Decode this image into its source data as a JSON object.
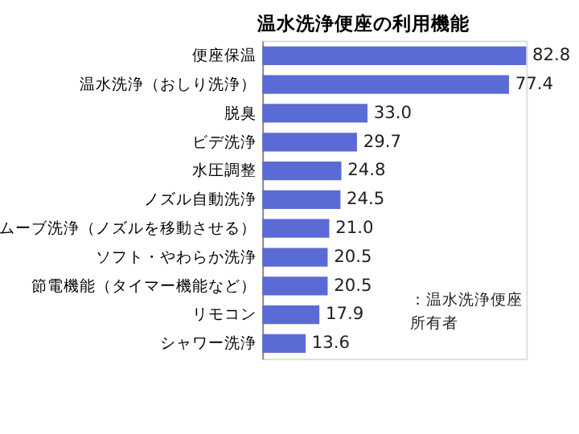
{
  "chart_data": {
    "type": "bar",
    "orientation": "horizontal",
    "title": "温水洗浄便座の利用機能",
    "categories": [
      "便座保温",
      "温水洗浄（おしり洗浄）",
      "脱臭",
      "ビデ洗浄",
      "水圧調整",
      "ノズル自動洗浄",
      "ムーブ洗浄（ノズルを移動させる）",
      "ソフト・やわらか洗浄",
      "節電機能（タイマー機能など）",
      "リモコン",
      "シャワー洗浄"
    ],
    "values": [
      82.8,
      77.4,
      33.0,
      29.7,
      24.8,
      24.5,
      21.0,
      20.5,
      20.5,
      17.9,
      13.6
    ],
    "value_labels": [
      "82.8",
      "77.4",
      "33.0",
      "29.7",
      "24.8",
      "24.5",
      "21.0",
      "20.5",
      "20.5",
      "17.9",
      "13.6"
    ],
    "color": "#5b6bd5",
    "tick_labels": "y",
    "annotations": [
      "：温水洗浄便座所有者"
    ]
  }
}
